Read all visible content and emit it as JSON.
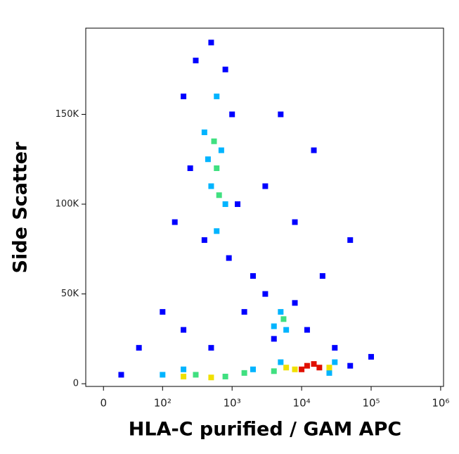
{
  "chart_data": {
    "type": "scatter",
    "xlabel": "HLA-C purified / GAM APC",
    "ylabel": "Side Scatter",
    "xscale": "biexponential",
    "xlim": [
      -30,
      1100000
    ],
    "ylim": [
      -1500,
      198000
    ],
    "xticks": [
      0,
      {
        "value": 100,
        "label": "10²"
      },
      {
        "value": 1000,
        "label": "10³"
      },
      {
        "value": 10000,
        "label": "10⁴"
      },
      {
        "value": 100000,
        "label": "10⁵"
      },
      {
        "value": 1000000,
        "label": "10⁶"
      }
    ],
    "yticks": [
      0,
      {
        "value": 50000,
        "label": "50K"
      },
      {
        "value": 100000,
        "label": "100K"
      },
      {
        "value": 150000,
        "label": "150K"
      }
    ],
    "series": [
      {
        "color": "#0000ff",
        "x": [
          200,
          300,
          500,
          800,
          1000,
          250,
          1200,
          400,
          900,
          2000,
          3000,
          8000,
          15000,
          20000,
          50000,
          5000,
          150,
          100,
          60,
          30,
          3000,
          8000,
          4000,
          12000,
          30000,
          50000,
          100000,
          200,
          500,
          1500
        ],
        "values": [
          160000,
          180000,
          190000,
          175000,
          150000,
          120000,
          100000,
          80000,
          70000,
          60000,
          110000,
          90000,
          130000,
          60000,
          80000,
          150000,
          90000,
          40000,
          20000,
          5000,
          50000,
          45000,
          25000,
          30000,
          20000,
          10000,
          15000,
          30000,
          20000,
          40000
        ]
      },
      {
        "color": "#00b4ff",
        "x": [
          400,
          600,
          700,
          500,
          800,
          600,
          450,
          5000,
          4000,
          6000,
          100,
          200,
          2000,
          5000,
          30000,
          25000
        ],
        "values": [
          140000,
          160000,
          130000,
          110000,
          100000,
          85000,
          125000,
          40000,
          32000,
          30000,
          5000,
          8000,
          8000,
          12000,
          12000,
          6000
        ]
      },
      {
        "color": "#40e080",
        "x": [
          600,
          550,
          650,
          5500,
          300,
          800,
          1500,
          4000
        ],
        "values": [
          120000,
          135000,
          105000,
          36000,
          5000,
          4000,
          6000,
          7000
        ]
      },
      {
        "color": "#f0e000",
        "x": [
          200,
          500,
          6000,
          8000,
          25000
        ],
        "values": [
          4000,
          3500,
          9000,
          8000,
          9000
        ]
      },
      {
        "color": "#e01000",
        "x": [
          12000,
          15000,
          18000,
          10000
        ],
        "values": [
          10000,
          11000,
          9000,
          8000
        ]
      }
    ]
  }
}
